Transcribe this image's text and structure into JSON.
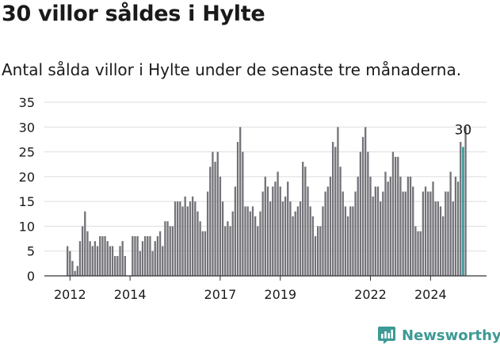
{
  "header": {
    "title": "30 villor såldes i Hylte",
    "subtitle": "Antal sålda villor i Hylte under de senaste tre månaderna."
  },
  "brand": {
    "name": "Newsworthy",
    "icon": "newsworthy-chart-icon",
    "color": "#3d9a94"
  },
  "colors": {
    "bar": "#737278",
    "highlight": "#1a8e8c",
    "grid": "#dddddd",
    "axis": "#333333",
    "text": "#1a1a1a"
  },
  "chart_data": {
    "type": "bar",
    "title": "30 villor såldes i Hylte",
    "subtitle": "Antal sålda villor i Hylte under de senaste tre månaderna.",
    "xlabel": "",
    "ylabel": "",
    "ylim": [
      0,
      35
    ],
    "yticks": [
      0,
      5,
      10,
      15,
      20,
      25,
      30,
      35
    ],
    "xticks": [
      "2012",
      "2014",
      "2017",
      "2019",
      "2022",
      "2024"
    ],
    "grid": true,
    "legend": "none",
    "highlight_label": "30",
    "first_period": "2011-12",
    "values": [
      6,
      5,
      3,
      1,
      2,
      7,
      10,
      13,
      9,
      7,
      6,
      7,
      6,
      8,
      8,
      8,
      7,
      6,
      6,
      4,
      4,
      6,
      7,
      4,
      0,
      0,
      8,
      8,
      8,
      5,
      7,
      8,
      8,
      8,
      5,
      7,
      8,
      9,
      6,
      11,
      11,
      10,
      10,
      15,
      15,
      15,
      14,
      16,
      14,
      15,
      16,
      15,
      13,
      11,
      9,
      9,
      17,
      22,
      25,
      23,
      25,
      20,
      15,
      10,
      11,
      10,
      13,
      18,
      27,
      30,
      25,
      14,
      14,
      13,
      14,
      12,
      10,
      13,
      17,
      20,
      18,
      15,
      18,
      19,
      21,
      18,
      15,
      16,
      19,
      15,
      12,
      13,
      14,
      15,
      23,
      22,
      18,
      14,
      12,
      8,
      10,
      10,
      14,
      17,
      18,
      20,
      27,
      26,
      30,
      22,
      17,
      14,
      12,
      14,
      14,
      17,
      20,
      25,
      28,
      30,
      25,
      20,
      16,
      18,
      18,
      15,
      17,
      21,
      19,
      20,
      25,
      24,
      24,
      20,
      17,
      17,
      20,
      20,
      18,
      10,
      9,
      9,
      17,
      18,
      17,
      17,
      19,
      15,
      15,
      14,
      12,
      17,
      17,
      21,
      15,
      20,
      19,
      27,
      26,
      30
    ],
    "highlight": [
      158
    ]
  }
}
